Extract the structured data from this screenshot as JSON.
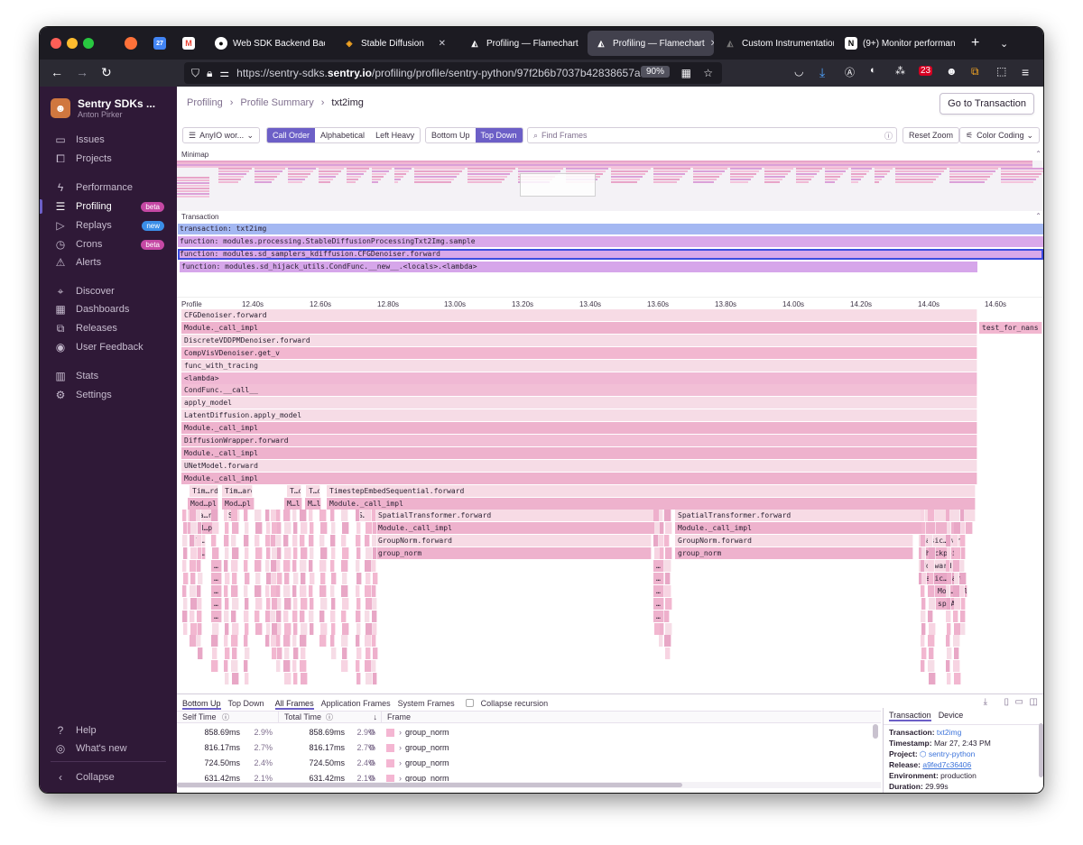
{
  "browser": {
    "tabs": [
      {
        "label": "Web SDK Backend Bac",
        "icon": "github-icon"
      },
      {
        "label": "Stable Diffusion",
        "icon": "layers-icon"
      },
      {
        "label": "Profiling — Flamechart",
        "icon": "sentry-icon"
      },
      {
        "label": "Profiling — Flamechart",
        "icon": "sentry-icon",
        "active": true
      },
      {
        "label": "Custom Instrumentation",
        "icon": "sentry-icon"
      },
      {
        "label": "(9+) Monitor performan",
        "icon": "notion-icon"
      }
    ],
    "url_prefix": "https://sentry-sdks.",
    "url_host": "sentry.io",
    "url_path": "/profiling/profile/sentry-python/97f2b6b7037b42838657a5",
    "zoom": "90%",
    "badge_count": "23"
  },
  "sidebar": {
    "org_name": "Sentry SDKs ...",
    "user_name": "Anton Pirker",
    "items": [
      {
        "label": "Issues",
        "icon": "issues-icon"
      },
      {
        "label": "Projects",
        "icon": "projects-icon"
      },
      {
        "label": "Performance",
        "icon": "lightning-icon"
      },
      {
        "label": "Profiling",
        "icon": "profiling-icon",
        "badge": "beta",
        "active": true
      },
      {
        "label": "Replays",
        "icon": "play-icon",
        "badge": "new"
      },
      {
        "label": "Crons",
        "icon": "timer-icon",
        "badge": "beta"
      },
      {
        "label": "Alerts",
        "icon": "siren-icon"
      },
      {
        "label": "Discover",
        "icon": "telescope-icon"
      },
      {
        "label": "Dashboards",
        "icon": "dashboard-icon"
      },
      {
        "label": "Releases",
        "icon": "releases-icon"
      },
      {
        "label": "User Feedback",
        "icon": "megaphone-icon"
      },
      {
        "label": "Stats",
        "icon": "stats-icon"
      },
      {
        "label": "Settings",
        "icon": "gear-icon"
      }
    ],
    "help": "Help",
    "whats_new": "What's new",
    "collapse": "Collapse"
  },
  "header": {
    "breadcrumbs": [
      "Profiling",
      "Profile Summary",
      "txt2img"
    ],
    "go_to_transaction": "Go to Transaction"
  },
  "toolbar": {
    "thread": "AnyIO wor...",
    "call_order": "Call Order",
    "alphabetical": "Alphabetical",
    "left_heavy": "Left Heavy",
    "bottom_up": "Bottom Up",
    "top_down": "Top Down",
    "find_placeholder": "Find Frames",
    "reset_zoom": "Reset Zoom",
    "color_coding": "Color Coding"
  },
  "minimap_label": "Minimap",
  "transaction_label": "Transaction",
  "spans": [
    "transaction: txt2img",
    "function: modules.processing.StableDiffusionProcessingTxt2Img.sample",
    "function: modules.sd_samplers_kdiffusion.CFGDenoiser.forward",
    "function: modules.sd_hijack_utils.CondFunc.__new__.<locals>.<lambda>"
  ],
  "ruler": {
    "label": "Profile",
    "ticks": [
      "12.40s",
      "12.60s",
      "12.80s",
      "13.00s",
      "13.20s",
      "13.40s",
      "13.60s",
      "13.80s",
      "14.00s",
      "14.20s",
      "14.40s",
      "14.60s"
    ]
  },
  "flame_frames": [
    "CFGDenoiser.forward",
    "Module._call_impl",
    "test_for_nans",
    "DiscreteVDDPMDenoiser.forward",
    "CompVisVDenoiser.get_v",
    "func_with_tracing",
    "<lambda>",
    "CondFunc.__call__",
    "apply_model",
    "LatentDiffusion.apply_model",
    "Module._call_impl",
    "DiffusionWrapper.forward",
    "Module._call_impl",
    "UNetModel.forward",
    "Module._call_impl",
    "Tim…rd",
    "Tim…ard",
    "T…d",
    "T…d",
    "TimestepEmbedSequential.forward",
    "Mod…pl",
    "Mod…pl",
    "M…l",
    "M…l",
    "Module._call_impl",
    "Spa…rd",
    "S…",
    "S…",
    "SpatialTransformer.forward",
    "SpatialTransformer.forward",
    "Mod…pl",
    "Module._call_impl",
    "Module._call_impl",
    "l…",
    "GroupNorm.forward",
    "GroupNorm.forward",
    "Basic…ward",
    "L…",
    "group_norm",
    "group_norm",
    "checkpoint",
    "forward",
    "Basic…ward",
    "Mod…mpl",
    "sp…AI",
    "…"
  ],
  "bottom": {
    "tabs": [
      "Bottom Up",
      "Top Down",
      "All Frames",
      "Application Frames",
      "System Frames"
    ],
    "collapse_recursion": "Collapse recursion",
    "columns": {
      "self_time": "Self Time",
      "total_time": "Total Time",
      "frame": "Frame"
    },
    "rows": [
      {
        "self": "858.69ms",
        "self_pct": "2.9%",
        "total": "858.69ms",
        "total_pct": "2.9%",
        "frame": "group_norm"
      },
      {
        "self": "816.17ms",
        "self_pct": "2.7%",
        "total": "816.17ms",
        "total_pct": "2.7%",
        "frame": "group_norm"
      },
      {
        "self": "724.50ms",
        "self_pct": "2.4%",
        "total": "724.50ms",
        "total_pct": "2.4%",
        "frame": "group_norm"
      },
      {
        "self": "631.42ms",
        "self_pct": "2.1%",
        "total": "631.42ms",
        "total_pct": "2.1%",
        "frame": "group_norm"
      }
    ]
  },
  "details": {
    "tabs": [
      "Transaction",
      "Device"
    ],
    "transaction_k": "Transaction:",
    "transaction_v": "txt2img",
    "timestamp_k": "Timestamp:",
    "timestamp_v": "Mar 27, 2:43 PM",
    "project_k": "Project:",
    "project_v": "sentry-python",
    "release_k": "Release:",
    "release_v": "a9fed7c36406",
    "environment_k": "Environment:",
    "environment_v": "production",
    "duration_k": "Duration:",
    "duration_v": "29.99s"
  }
}
